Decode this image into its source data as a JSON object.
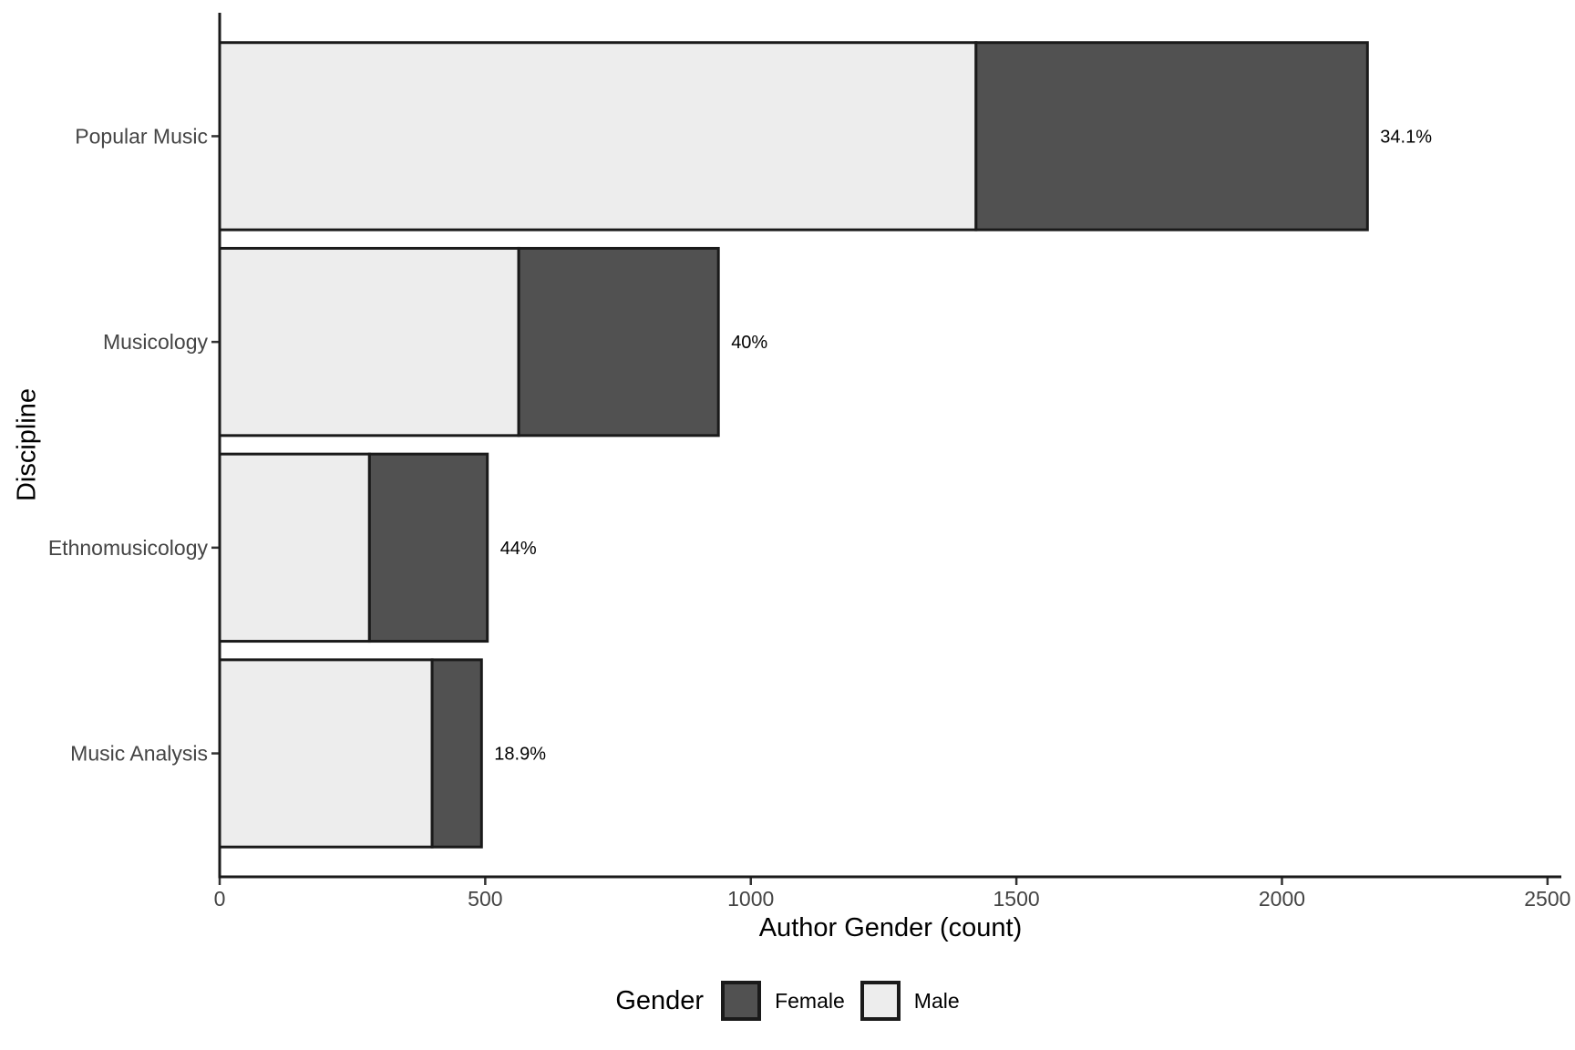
{
  "chart_data": {
    "type": "bar",
    "orientation": "horizontal",
    "stacked": true,
    "title": "",
    "xlabel": "Author Gender (count)",
    "ylabel": "Discipline",
    "categories": [
      "Popular Music",
      "Musicology",
      "Ethnomusicology",
      "Music Analysis"
    ],
    "series": [
      {
        "name": "Male",
        "color": "#EDEDED",
        "values": [
          1424,
          563,
          282,
          400
        ]
      },
      {
        "name": "Female",
        "color": "#515151",
        "values": [
          737,
          376,
          222,
          93
        ]
      }
    ],
    "totals": [
      2161,
      939,
      504,
      493
    ],
    "bar_labels": [
      "34.1%",
      "40%",
      "44%",
      "18.9%"
    ],
    "x_ticks": [
      0,
      500,
      1000,
      1500,
      2000,
      2500
    ],
    "xlim": [
      0,
      2526
    ],
    "grid": false,
    "bar_border_color": "#1A1A1A",
    "axis_line_color": "#1A1A1A",
    "axis_text_color": "#444444",
    "label_text_color": "#000000",
    "legend": {
      "position": "bottom",
      "title": "Gender",
      "entries": [
        {
          "label": "Female",
          "color": "#515151"
        },
        {
          "label": "Male",
          "color": "#EDEDED"
        }
      ]
    }
  }
}
